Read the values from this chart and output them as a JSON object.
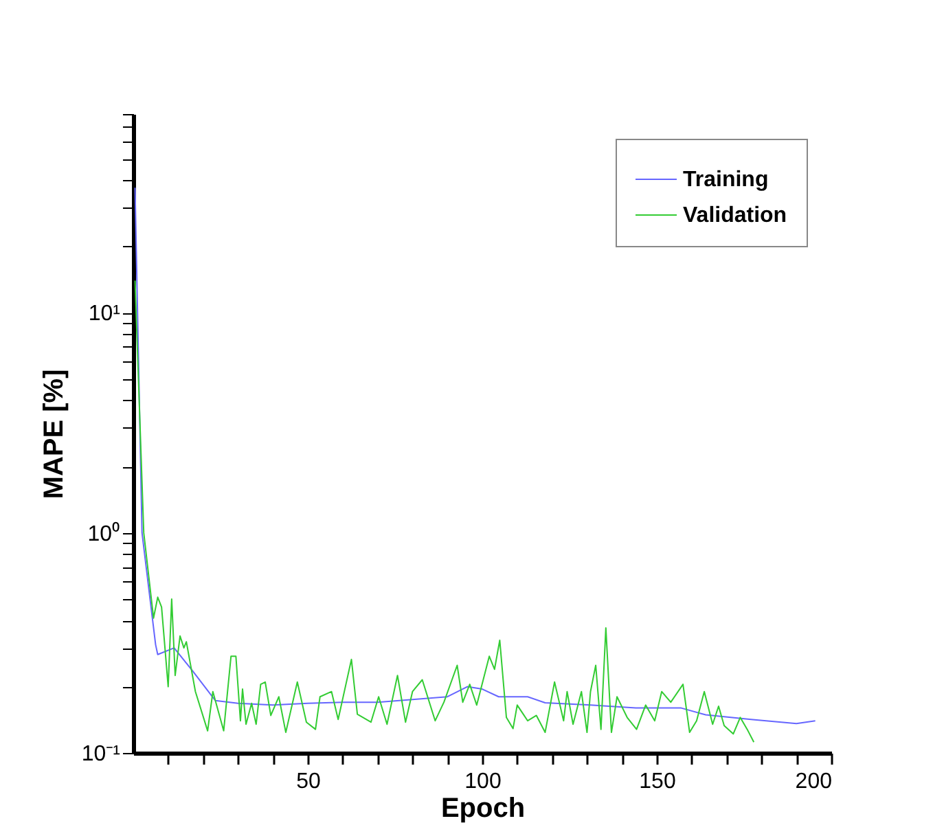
{
  "chart_data": {
    "type": "line",
    "xlabel": "Epoch",
    "ylabel": "MAPE [%]",
    "log": true,
    "legend": "top right",
    "grid": false,
    "line_style": "solid",
    "marker": "none",
    "xlim": [
      0,
      200
    ],
    "ylim": [
      0.1,
      80
    ],
    "xticks": [
      {
        "value": 10,
        "label": null
      },
      {
        "value": 20,
        "label": null
      },
      {
        "value": 30,
        "label": null
      },
      {
        "value": 40,
        "label": null
      },
      50,
      {
        "value": 60,
        "label": null
      },
      {
        "value": 70,
        "label": null
      },
      {
        "value": 80,
        "label": null
      },
      {
        "value": 90,
        "label": null
      },
      100,
      {
        "value": 110,
        "label": null
      },
      {
        "value": 120,
        "label": null
      },
      {
        "value": 130,
        "label": null
      },
      {
        "value": 140,
        "label": null
      },
      150,
      {
        "value": 160,
        "label": null
      },
      {
        "value": 170,
        "label": null
      },
      {
        "value": 180,
        "label": null
      },
      {
        "value": 190,
        "label": null
      },
      200
    ],
    "yticks": [
      {
        "value": 0.1,
        "label": "10⁻¹"
      },
      {
        "value": 0.2,
        "label": null
      },
      {
        "value": 0.3,
        "label": null
      },
      {
        "value": 0.4,
        "label": null
      },
      {
        "value": 0.5,
        "label": null
      },
      {
        "value": 0.6,
        "label": null
      },
      {
        "value": 0.7,
        "label": null
      },
      {
        "value": 0.8,
        "label": null
      },
      {
        "value": 0.9,
        "label": null
      },
      {
        "value": 1,
        "label": "10⁰"
      },
      {
        "value": 2,
        "label": null
      },
      {
        "value": 3,
        "label": null
      },
      {
        "value": 4,
        "label": null
      },
      {
        "value": 5,
        "label": null
      },
      {
        "value": 6,
        "label": null
      },
      {
        "value": 7,
        "label": null
      },
      {
        "value": 8,
        "label": null
      },
      {
        "value": 9,
        "label": null
      },
      {
        "value": 10,
        "label": "10¹"
      },
      {
        "value": 20,
        "label": null
      },
      {
        "value": 30,
        "label": null
      },
      {
        "value": 40,
        "label": null
      },
      {
        "value": 50,
        "label": null
      },
      {
        "value": 60,
        "label": null
      },
      {
        "value": 70,
        "label": null
      },
      {
        "value": 80,
        "label": null
      }
    ],
    "series": [
      {
        "name": "Training",
        "color": "#6666ff",
        "x": [
          0.5,
          2.5,
          6.4,
          7,
          11.7,
          17,
          21,
          23.5,
          30,
          40,
          50,
          60,
          70,
          80,
          90,
          95.7,
          100,
          104.7,
          113,
          118,
          131,
          144,
          157,
          164,
          177,
          190,
          195.4
        ],
        "values": [
          37,
          1.0,
          0.31,
          0.28,
          0.3,
          0.236,
          0.195,
          0.173,
          0.168,
          0.165,
          0.168,
          0.17,
          0.17,
          0.175,
          0.18,
          0.2,
          0.195,
          0.18,
          0.18,
          0.169,
          0.165,
          0.16,
          0.16,
          0.149,
          0.142,
          0.136,
          0.14
        ]
      },
      {
        "name": "Validation",
        "color": "#33cc33",
        "x": [
          0.5,
          3,
          5.8,
          7,
          8.1,
          10,
          11,
          12,
          13.4,
          14.5,
          15.2,
          17.8,
          21.3,
          22.8,
          25.9,
          28,
          29.4,
          30.7,
          31.3,
          32.3,
          33.9,
          35.2,
          36.5,
          37.8,
          39.4,
          41.7,
          43.7,
          47,
          49.6,
          52.2,
          53.5,
          56.8,
          58.7,
          62.5,
          64.2,
          68.1,
          70.3,
          72.7,
          75.7,
          78,
          80,
          82.8,
          86.5,
          89,
          92.8,
          94.4,
          96.4,
          98.4,
          102,
          103.5,
          105,
          106.9,
          108.8,
          110,
          113,
          115.5,
          118,
          120.7,
          123.3,
          124.3,
          126,
          128.4,
          130,
          131,
          132.5,
          134,
          135.4,
          137,
          138.6,
          141.5,
          144.2,
          146.8,
          149.4,
          151.4,
          154,
          157.5,
          159.4,
          161.4,
          163.6,
          166,
          167.7,
          169.3,
          171.9,
          173.9,
          175.9,
          177.8
        ],
        "values": [
          14,
          1.0,
          0.41,
          0.51,
          0.46,
          0.2,
          0.5,
          0.225,
          0.34,
          0.3,
          0.32,
          0.19,
          0.126,
          0.19,
          0.126,
          0.275,
          0.275,
          0.14,
          0.195,
          0.135,
          0.168,
          0.135,
          0.205,
          0.21,
          0.148,
          0.18,
          0.124,
          0.21,
          0.138,
          0.128,
          0.18,
          0.19,
          0.142,
          0.266,
          0.15,
          0.138,
          0.18,
          0.135,
          0.225,
          0.138,
          0.19,
          0.215,
          0.14,
          0.17,
          0.25,
          0.17,
          0.205,
          0.165,
          0.275,
          0.24,
          0.325,
          0.145,
          0.129,
          0.165,
          0.14,
          0.148,
          0.124,
          0.21,
          0.14,
          0.19,
          0.135,
          0.19,
          0.124,
          0.19,
          0.25,
          0.128,
          0.37,
          0.124,
          0.18,
          0.145,
          0.128,
          0.165,
          0.14,
          0.19,
          0.17,
          0.205,
          0.124,
          0.14,
          0.19,
          0.135,
          0.163,
          0.133,
          0.122,
          0.145,
          0.128,
          0.112
        ]
      }
    ]
  }
}
